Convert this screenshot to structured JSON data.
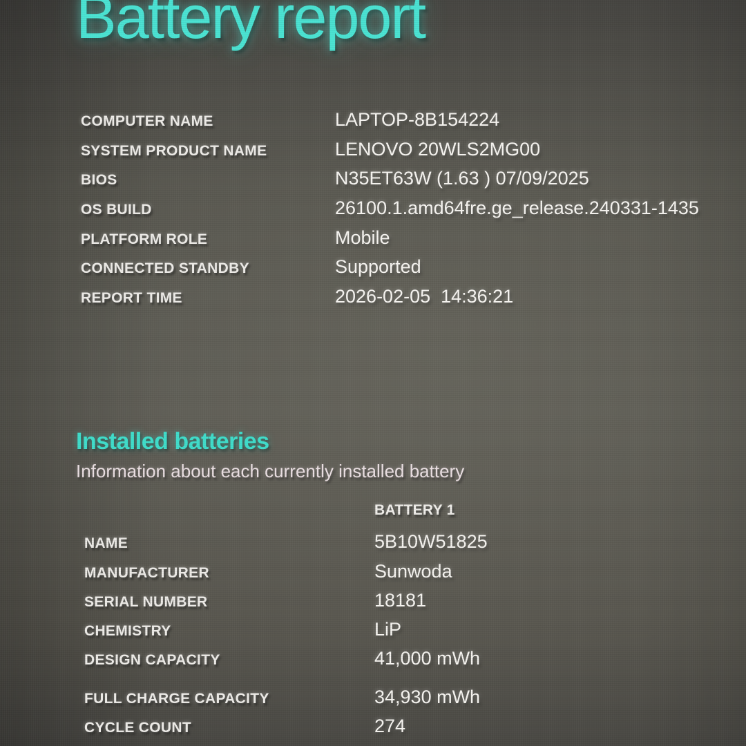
{
  "page": {
    "title": "Battery report",
    "accent_teal": "#4ae2d2",
    "background_gray": "#54534c",
    "text_color": "#f6f4f0"
  },
  "system_info": {
    "rows": [
      {
        "label": "COMPUTER NAME",
        "value": "LAPTOP-8B154224"
      },
      {
        "label": "SYSTEM PRODUCT NAME",
        "value": "LENOVO 20WLS2MG00"
      },
      {
        "label": "BIOS",
        "value": "N35ET63W (1.63 ) 07/09/2025"
      },
      {
        "label": "OS BUILD",
        "value": "26100.1.amd64fre.ge_release.240331-1435"
      },
      {
        "label": "PLATFORM ROLE",
        "value": "Mobile"
      },
      {
        "label": "CONNECTED STANDBY",
        "value": "Supported"
      },
      {
        "label": "REPORT TIME",
        "value": "2026-02-05  14:36:21"
      }
    ]
  },
  "installed_batteries": {
    "heading": "Installed batteries",
    "subtitle": "Information about each currently installed battery",
    "column_header": "BATTERY 1",
    "rows": [
      {
        "label": "NAME",
        "value": "5B10W51825"
      },
      {
        "label": "MANUFACTURER",
        "value": "Sunwoda"
      },
      {
        "label": "SERIAL NUMBER",
        "value": "18181"
      },
      {
        "label": "CHEMISTRY",
        "value": "LiP"
      },
      {
        "label": "DESIGN CAPACITY",
        "value": "41,000 mWh"
      },
      {
        "label": "FULL CHARGE CAPACITY",
        "value": "34,930 mWh"
      },
      {
        "label": "CYCLE COUNT",
        "value": "274"
      }
    ]
  }
}
